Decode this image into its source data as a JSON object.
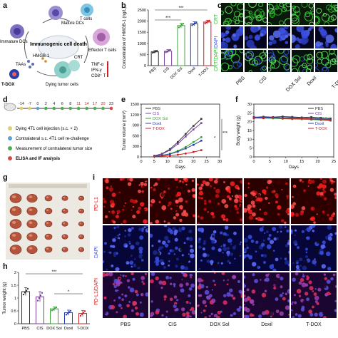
{
  "panels": {
    "a": "a",
    "b": "b",
    "c": "c",
    "d": "d",
    "e": "e",
    "f": "f",
    "g": "g",
    "h": "h",
    "i": "i"
  },
  "panel_a": {
    "center": "Immunogenic cell death",
    "labels": {
      "mature_dcs": "Mature DCs",
      "t_cells": "T cells",
      "immature_dcs": "Immature DCs",
      "effector": "Effector T cells",
      "hmgb1": "HMGB-1",
      "crt": "CRT",
      "taas": "TAAs",
      "tdox": "T-DOX",
      "dying": "Dying tumor cells",
      "tnf": "TNF-α",
      "ifn": "IFN-γ",
      "cd8": "CD8⁺ T"
    }
  },
  "panel_b_text": {
    "ylabel": "Concentration of HMGB-1 (ng/L)",
    "sig": "***"
  },
  "panel_c_text": {
    "rows": [
      "CRT",
      "DAPI",
      "CRT/DAPI"
    ],
    "cols": [
      "PBS",
      "CIS",
      "DOX Sol",
      "Doxil",
      "T-DOX"
    ]
  },
  "panel_d": {
    "timeline": [
      "-14",
      "-7",
      "0",
      "2",
      "4",
      "6",
      "8",
      "11",
      "14",
      "17",
      "20",
      "23"
    ],
    "legend": [
      "Dying 4T1 cell injection (s.c. × 2)",
      "Contralateral s.c. 4T1 cell re-challenge",
      "Measurement of contralateral tumor size",
      "ELISA and IF analysis"
    ]
  },
  "panel_e_text": {
    "ylabel": "Tumor volume (mm³)",
    "xlabel": "Days",
    "sig1": "***",
    "sig2": "*"
  },
  "panel_f_text": {
    "ylabel": "Body weight (g)",
    "xlabel": "Days"
  },
  "panel_h_text": {
    "ylabel": "Tumor weight (g)",
    "sig1": "***",
    "sig2": "*"
  },
  "panel_i_text": {
    "rows": [
      "PD-L1",
      "DAPI",
      "PD-L1/DAPI"
    ],
    "cols": [
      "PBS",
      "CIS",
      "DOX Sol",
      "Doxil",
      "T-DOX"
    ]
  },
  "colors": {
    "PBS": "#333333",
    "CIS": "#7b3fa0",
    "DOX Sol": "#3aa23a",
    "Doxil": "#2a3fa8",
    "T-DOX": "#cc2222"
  },
  "chart_data": [
    {
      "id": "b",
      "type": "bar",
      "categories": [
        "PBS",
        "CIS",
        "DOX Sol",
        "Doxil",
        "T-DOX"
      ],
      "values": [
        620,
        650,
        1800,
        1880,
        1960
      ],
      "errors": [
        60,
        70,
        110,
        90,
        80
      ],
      "ylabel": "Concentration of HMGB-1 (ng/L)",
      "yticks": [
        0,
        500,
        1000,
        1500,
        2000,
        2500
      ],
      "ylim": [
        0,
        2500
      ]
    },
    {
      "id": "e",
      "type": "line",
      "xlabel": "Days",
      "ylabel": "Tumor volume (mm³)",
      "xticks": [
        0,
        5,
        10,
        15,
        20,
        25,
        30
      ],
      "yticks": [
        0,
        300,
        600,
        900,
        1200,
        1500
      ],
      "xlim": [
        0,
        30
      ],
      "ylim": [
        0,
        1500
      ],
      "x": [
        5,
        8,
        11,
        14,
        17,
        20,
        23
      ],
      "series": [
        {
          "name": "PBS",
          "values": [
            30,
            90,
            220,
            420,
            650,
            880,
            1080
          ]
        },
        {
          "name": "CIS",
          "values": [
            28,
            80,
            190,
            370,
            580,
            780,
            960
          ]
        },
        {
          "name": "DOX Sol",
          "values": [
            20,
            45,
            90,
            170,
            280,
            420,
            560
          ]
        },
        {
          "name": "Doxil",
          "values": [
            18,
            40,
            80,
            150,
            240,
            340,
            460
          ]
        },
        {
          "name": "T-DOX",
          "values": [
            10,
            20,
            35,
            60,
            95,
            140,
            190
          ]
        }
      ]
    },
    {
      "id": "f",
      "type": "line",
      "xlabel": "Days",
      "ylabel": "Body weight (g)",
      "xticks": [
        0,
        5,
        10,
        15,
        20,
        25
      ],
      "yticks": [
        0,
        5,
        10,
        15,
        20,
        25,
        30
      ],
      "xlim": [
        0,
        25
      ],
      "ylim": [
        0,
        30
      ],
      "x": [
        0,
        3,
        6,
        9,
        12,
        15,
        18,
        21,
        24
      ],
      "series": [
        {
          "name": "PBS",
          "values": [
            22.5,
            22.8,
            22.6,
            22.9,
            22.7,
            22.4,
            22.6,
            22.2,
            21.8
          ]
        },
        {
          "name": "CIS",
          "values": [
            22.0,
            22.3,
            22.1,
            22.0,
            21.8,
            21.6,
            21.7,
            21.3,
            21.0
          ]
        },
        {
          "name": "DOX Sol",
          "values": [
            22.3,
            22.1,
            21.9,
            21.7,
            21.5,
            21.4,
            21.2,
            21.0,
            20.6
          ]
        },
        {
          "name": "Doxil",
          "values": [
            22.6,
            22.4,
            22.5,
            22.2,
            22.3,
            22.0,
            21.9,
            21.6,
            21.4
          ]
        },
        {
          "name": "T-DOX",
          "values": [
            22.1,
            22.0,
            22.2,
            21.9,
            21.8,
            21.9,
            21.5,
            21.2,
            20.8
          ]
        }
      ]
    },
    {
      "id": "h",
      "type": "bar",
      "categories": [
        "PBS",
        "CIS",
        "DOX Sol",
        "Doxil",
        "T-DOX"
      ],
      "values": [
        1.25,
        1.05,
        0.58,
        0.43,
        0.4
      ],
      "errors": [
        0.15,
        0.2,
        0.08,
        0.1,
        0.12
      ],
      "ylabel": "Tumor weight (g)",
      "yticks": [
        0.0,
        0.5,
        1.0,
        1.5,
        2.0
      ],
      "ylim": [
        0,
        2.0
      ]
    }
  ]
}
